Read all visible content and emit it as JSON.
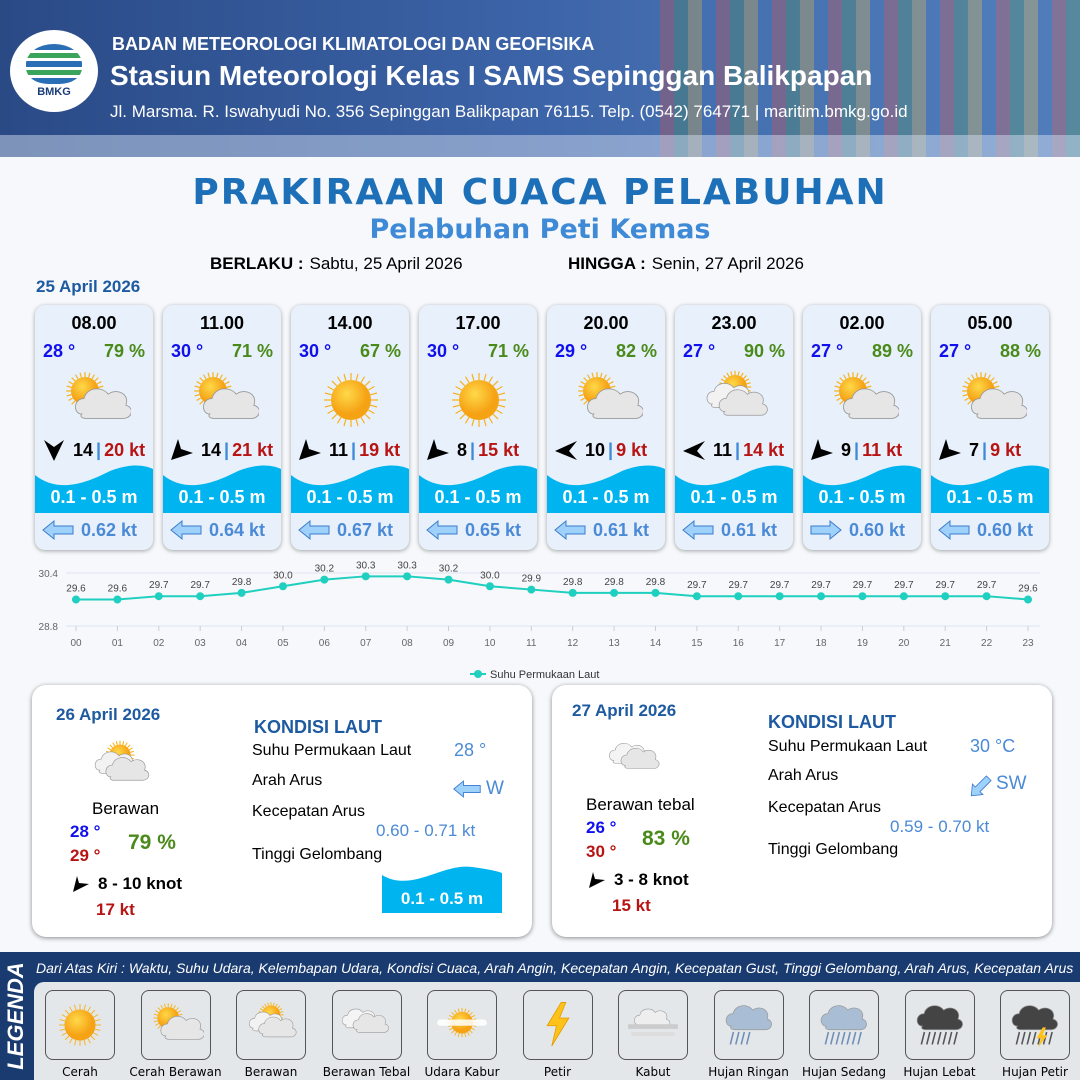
{
  "header": {
    "agency": "BADAN METEOROLOGI KLIMATOLOGI DAN GEOFISIKA",
    "station": "Stasiun Meteorologi Kelas I SAMS Sepinggan Balikpapan",
    "address": "Jl. Marsma. R. Iswahyudi No. 356 Sepinggan Balikpapan 76115. Telp. (0542) 764771 | maritim.bmkg.go.id",
    "logo_text": "BMKG"
  },
  "title": "PRAKIRAAN CUACA PELABUHAN",
  "subtitle": "Pelabuhan Peti Kemas",
  "validity": {
    "from_label": "BERLAKU :",
    "from": "Sabtu, 25 April 2026",
    "to_label": "HINGGA :",
    "to": "Senin, 27 April 2026"
  },
  "day1": {
    "date": "25 April 2026",
    "cards": [
      {
        "time": "08.00",
        "temp": "28 °",
        "rh": "79 %",
        "icon": "cerah-berawan",
        "wind_dir": "arrow-down",
        "wind": "14",
        "gust": "20 kt",
        "wave": "0.1 - 0.5 m",
        "cur_dir": "arrow-left",
        "cur": "0.62 kt"
      },
      {
        "time": "11.00",
        "temp": "30 °",
        "rh": "71 %",
        "icon": "cerah-berawan",
        "wind_dir": "arrow-right",
        "wind": "14",
        "gust": "21 kt",
        "wave": "0.1 - 0.5 m",
        "cur_dir": "arrow-left",
        "cur": "0.64 kt"
      },
      {
        "time": "14.00",
        "temp": "30 °",
        "rh": "67 %",
        "icon": "cerah",
        "wind_dir": "arrow-right",
        "wind": "11",
        "gust": "19 kt",
        "wave": "0.1 - 0.5 m",
        "cur_dir": "arrow-left",
        "cur": "0.67 kt"
      },
      {
        "time": "17.00",
        "temp": "30 °",
        "rh": "71 %",
        "icon": "cerah",
        "wind_dir": "arrow-right",
        "wind": "8",
        "gust": "15 kt",
        "wave": "0.1 - 0.5 m",
        "cur_dir": "arrow-left",
        "cur": "0.65 kt"
      },
      {
        "time": "20.00",
        "temp": "29 °",
        "rh": "82 %",
        "icon": "cerah-berawan",
        "wind_dir": "arrow-left",
        "wind": "10",
        "gust": "9 kt",
        "wave": "0.1 - 0.5 m",
        "cur_dir": "arrow-left",
        "cur": "0.61 kt"
      },
      {
        "time": "23.00",
        "temp": "27 °",
        "rh": "90 %",
        "icon": "berawan",
        "wind_dir": "arrow-left",
        "wind": "11",
        "gust": "14 kt",
        "wave": "0.1 - 0.5 m",
        "cur_dir": "arrow-left",
        "cur": "0.61 kt"
      },
      {
        "time": "02.00",
        "temp": "27 °",
        "rh": "89 %",
        "icon": "cerah-berawan",
        "wind_dir": "arrow-right",
        "wind": "9",
        "gust": "11 kt",
        "wave": "0.1 - 0.5 m",
        "cur_dir": "arrow-right",
        "cur": "0.60 kt"
      },
      {
        "time": "05.00",
        "temp": "27 °",
        "rh": "88 %",
        "icon": "cerah-berawan",
        "wind_dir": "arrow-right",
        "wind": "7",
        "gust": "9 kt",
        "wave": "0.1 - 0.5 m",
        "cur_dir": "arrow-left",
        "cur": "0.60 kt"
      }
    ]
  },
  "chart_data": {
    "type": "line",
    "categories": [
      "00",
      "01",
      "02",
      "03",
      "04",
      "05",
      "06",
      "07",
      "08",
      "09",
      "10",
      "11",
      "12",
      "13",
      "14",
      "15",
      "16",
      "17",
      "18",
      "19",
      "20",
      "21",
      "22",
      "23"
    ],
    "series": [
      {
        "name": "Suhu Permukaan Laut",
        "values": [
          29.6,
          29.6,
          29.7,
          29.7,
          29.8,
          30.0,
          30.2,
          30.3,
          30.3,
          30.2,
          30.0,
          29.9,
          29.8,
          29.8,
          29.8,
          29.7,
          29.7,
          29.7,
          29.7,
          29.7,
          29.7,
          29.7,
          29.7,
          29.6
        ],
        "color": "#1fcfbf"
      }
    ],
    "yticks": [
      "30.4",
      "28.8"
    ],
    "ylim": [
      28.8,
      30.4
    ],
    "legend": "bottom"
  },
  "day2": {
    "date": "26 April 2026",
    "icon": "berawan-sun",
    "condition": "Berawan",
    "tmin": "28 °",
    "tmax": "29 °",
    "rh": "79 %",
    "wind": "8  - 10 knot",
    "gust": "17 kt",
    "sea_title": "KONDISI LAUT",
    "l_sst": "Suhu Permukaan Laut",
    "sst": "28 °",
    "l_dir": "Arah Arus",
    "dir": "W",
    "l_speed": "Kecepatan Arus",
    "speed": "0.60  - 0.71 kt",
    "l_wave": "Tinggi Gelombang",
    "wave": "0.1 - 0.5 m"
  },
  "day3": {
    "date": "27 April 2026",
    "icon": "berawan-tebal",
    "condition": "Berawan tebal",
    "tmin": "26 °",
    "tmax": "30 °",
    "rh": "83 %",
    "wind": "3  - 8 knot",
    "gust": "15 kt",
    "sea_title": "KONDISI LAUT",
    "l_sst": "Suhu Permukaan Laut",
    "sst": "30 °C",
    "l_dir": "Arah Arus",
    "dir": "SW",
    "l_speed": "Kecepatan Arus",
    "speed": "0.59  - 0.70 kt",
    "l_wave": "Tinggi Gelombang"
  },
  "legend": {
    "side": "LEGENDA",
    "desc": "Dari Atas Kiri : Waktu, Suhu Udara, Kelembapan Udara, Kondisi Cuaca, Arah Angin, Kecepatan Angin, Kecepatan Gust, Tinggi Gelombang, Arah Arus, Kecepatan Arus",
    "items": [
      {
        "label": "Cerah",
        "icon": "cerah"
      },
      {
        "label": "Cerah Berawan",
        "icon": "cerah-berawan"
      },
      {
        "label": "Berawan",
        "icon": "berawan"
      },
      {
        "label": "Berawan Tebal",
        "icon": "berawan-tebal"
      },
      {
        "label": "Udara Kabur",
        "icon": "udara-kabur"
      },
      {
        "label": "Petir",
        "icon": "petir"
      },
      {
        "label": "Kabut",
        "icon": "kabut"
      },
      {
        "label": "Hujan Ringan",
        "icon": "hujan-ringan"
      },
      {
        "label": "Hujan Sedang",
        "icon": "hujan-sedang"
      },
      {
        "label": "Hujan Lebat",
        "icon": "hujan-lebat"
      },
      {
        "label": "Hujan Petir",
        "icon": "hujan-petir"
      }
    ]
  },
  "colors": {
    "temp": "#1010ee",
    "rh": "#4a8a1a",
    "gust": "#b81414",
    "wave": "#00b4f0",
    "current": "#4a8ad6",
    "title": "#1d70b8"
  }
}
